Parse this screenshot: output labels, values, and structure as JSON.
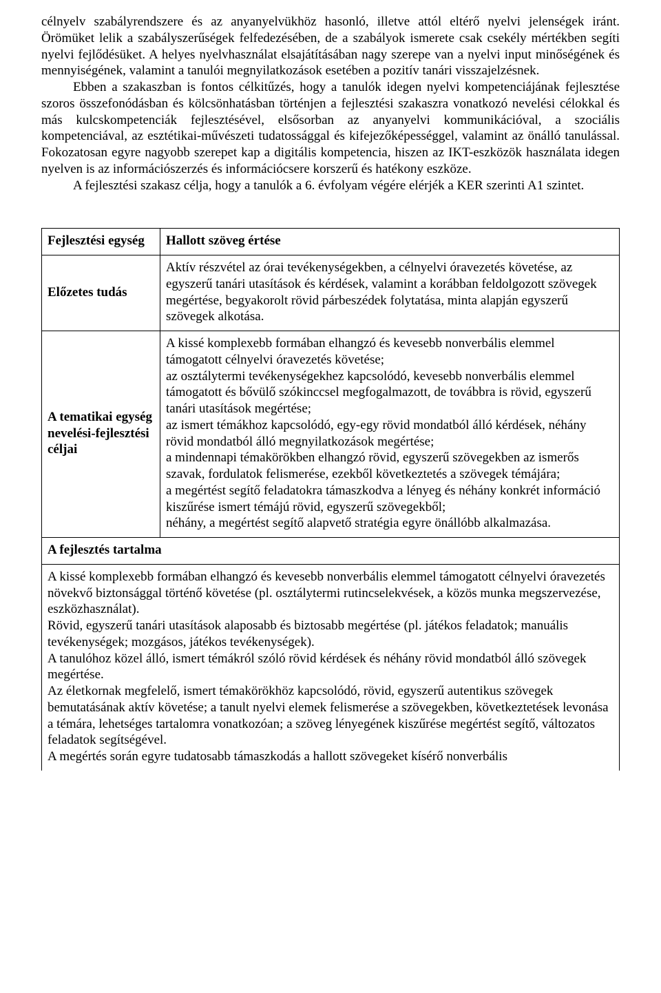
{
  "paragraphs": {
    "p1": "célnyelv szabályrendszere és az anyanyelvükhöz hasonló, illetve attól eltérő nyelvi jelenségek iránt. Örömüket lelik a szabályszerűségek felfedezésében, de a szabályok ismerete csak csekély mértékben segíti nyelvi fejlődésüket. A helyes nyelvhasználat elsajátításában nagy szerepe van a nyelvi input minőségének és mennyiségének, valamint a tanulói megnyilatkozások esetében a pozitív tanári visszajelzésnek.",
    "p2": "Ebben a szakaszban is fontos célkitűzés, hogy a tanulók idegen nyelvi kompetenciájának fejlesztése szoros összefonódásban és kölcsönhatásban történjen a fejlesztési szakaszra vonatkozó nevelési célokkal és más kulcskompetenciák fejlesztésével, elsősorban az anyanyelvi kommunikációval, a szociális kompetenciával, az esztétikai-művészeti tudatossággal és kifejezőképességgel, valamint az önálló tanulással. Fokozatosan egyre nagyobb szerepet kap a digitális kompetencia, hiszen az IKT-eszközök használata idegen nyelven is az információszerzés és információcsere korszerű és hatékony eszköze.",
    "p3": "A fejlesztési szakasz célja, hogy a tanulók a 6. évfolyam végére elérjék a KER szerinti A1 szintet."
  },
  "table": {
    "row1_left": "Fejlesztési egység",
    "row1_right": "Hallott szöveg értése",
    "row2_left": "Előzetes tudás",
    "row2_right": "Aktív részvétel az órai tevékenységekben, a célnyelvi óravezetés követése, az egyszerű tanári utasítások és kérdések, valamint a korábban feldolgozott szövegek megértése, begyakorolt rövid párbeszédek folytatása, minta alapján egyszerű szövegek alkotása.",
    "row3_left": "A tematikai egység nevelési-fejlesztési céljai",
    "row3_right_1": "A kissé komplexebb formában elhangzó és kevesebb nonverbális elemmel támogatott célnyelvi óravezetés követése;",
    "row3_right_2": "az osztálytermi tevékenységekhez kapcsolódó, kevesebb nonverbális elemmel támogatott és bővülő szókinccsel megfogalmazott, de továbbra is rövid, egyszerű tanári utasítások megértése;",
    "row3_right_3": "az ismert témákhoz kapcsolódó, egy-egy rövid mondatból álló kérdések, néhány rövid mondatból álló megnyilatkozások megértése;",
    "row3_right_4": "a mindennapi témakörökben elhangzó rövid, egyszerű szövegekben az ismerős szavak, fordulatok felismerése, ezekből következtetés a szövegek témájára;",
    "row3_right_5": "a megértést segítő feladatokra támaszkodva a lényeg és néhány konkrét információ kiszűrése ismert témájú rövid, egyszerű szövegekből;",
    "row3_right_6": "néhány, a megértést segítő alapvető stratégia egyre önállóbb alkalmazása.",
    "section_title": "A fejlesztés tartalma",
    "content_1": "A kissé komplexebb formában elhangzó és kevesebb nonverbális elemmel támogatott célnyelvi óravezetés növekvő biztonsággal történő követése (pl. osztálytermi rutincselekvések, a közös munka megszervezése, eszközhasználat).",
    "content_2": "Rövid, egyszerű tanári utasítások alaposabb és biztosabb megértése (pl. játékos feladatok; manuális tevékenységek; mozgásos, játékos tevékenységek).",
    "content_3": "A tanulóhoz közel álló, ismert témákról szóló rövid kérdések és néhány rövid mondatból álló szövegek megértése.",
    "content_4": "Az életkornak megfelelő, ismert témakörökhöz kapcsolódó, rövid, egyszerű autentikus szövegek bemutatásának aktív követése; a tanult nyelvi elemek felismerése a szövegekben, következtetések levonása a témára, lehetséges tartalomra vonatkozóan; a szöveg lényegének kiszűrése megértést segítő, változatos feladatok segítségével.",
    "content_5": "A megértés során egyre tudatosabb támaszkodás a hallott szövegeket kísérő nonverbális"
  }
}
